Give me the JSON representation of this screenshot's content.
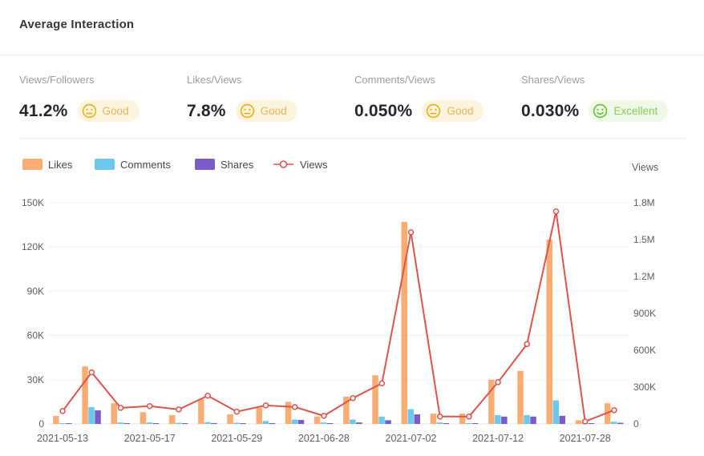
{
  "header": {
    "title": "Average Interaction"
  },
  "metrics": [
    {
      "label": "Views/Followers",
      "value": "41.2%",
      "rating": "Good",
      "sentiment": "neutral"
    },
    {
      "label": "Likes/Views",
      "value": "7.8%",
      "rating": "Good",
      "sentiment": "neutral"
    },
    {
      "label": "Comments/Views",
      "value": "0.050%",
      "rating": "Good",
      "sentiment": "neutral"
    },
    {
      "label": "Shares/Views",
      "value": "0.030%",
      "rating": "Excellent",
      "sentiment": "positive"
    }
  ],
  "colors": {
    "likes": "#F9AD72",
    "comments": "#6DC8EC",
    "shares": "#7A5BC7",
    "views_line": "#E0534A",
    "good_badge_bg": "#FCF4DC",
    "good_text": "#E5B55F",
    "good_icon": "#EAAE14",
    "excellent_badge_bg": "#F0F8E8",
    "excellent_text": "#85CB5A",
    "excellent_icon": "#64C12F",
    "grid_line": "#f0f0f3",
    "axis_line": "#e4e4ea",
    "tick_text": "#5d5d66"
  },
  "chart_data": {
    "type": "bar",
    "note": "grouped bars (left axis) + line series Views (right axis), grid on, legend top-left",
    "right_axis_title": "Views",
    "x_labels": [
      "2021-05-13",
      "",
      "",
      "2021-05-17",
      "",
      "",
      "2021-05-29",
      "",
      "",
      "2021-06-28",
      "",
      "",
      "2021-07-02",
      "",
      "",
      "2021-07-12",
      "",
      "",
      "2021-07-28",
      ""
    ],
    "left_axis": {
      "ticks": [
        "0",
        "30K",
        "60K",
        "90K",
        "120K",
        "150K"
      ],
      "max": 150000
    },
    "right_axis": {
      "ticks": [
        "0",
        "300K",
        "600K",
        "900K",
        "1.2M",
        "1.5M",
        "1.8M"
      ],
      "max": 1800000
    },
    "series": [
      {
        "name": "Likes",
        "type": "bar",
        "axis": "left",
        "color": "#F9AD72",
        "values": [
          5400,
          39000,
          14000,
          8000,
          6000,
          17000,
          6500,
          11000,
          15000,
          5000,
          18500,
          33000,
          137000,
          7000,
          7000,
          30000,
          36000,
          125000,
          2500,
          14000
        ]
      },
      {
        "name": "Comments",
        "type": "bar",
        "axis": "left",
        "color": "#6DC8EC",
        "values": [
          600,
          11400,
          1000,
          1000,
          800,
          1200,
          800,
          2000,
          3000,
          1000,
          3000,
          5000,
          10000,
          1000,
          600,
          6000,
          6000,
          16000,
          1000,
          1500
        ]
      },
      {
        "name": "Shares",
        "type": "bar",
        "axis": "left",
        "color": "#7A5BC7",
        "values": [
          400,
          9200,
          600,
          500,
          400,
          600,
          400,
          600,
          2700,
          500,
          1000,
          2500,
          6500,
          400,
          300,
          5000,
          5000,
          5500,
          400,
          800
        ]
      },
      {
        "name": "Views",
        "type": "line",
        "axis": "right",
        "color": "#E0534A",
        "values": [
          105000,
          420000,
          131000,
          145000,
          118000,
          230000,
          100000,
          151000,
          138000,
          66000,
          210000,
          330000,
          1560000,
          60000,
          60000,
          340000,
          650000,
          1730000,
          20000,
          112000
        ]
      }
    ]
  }
}
